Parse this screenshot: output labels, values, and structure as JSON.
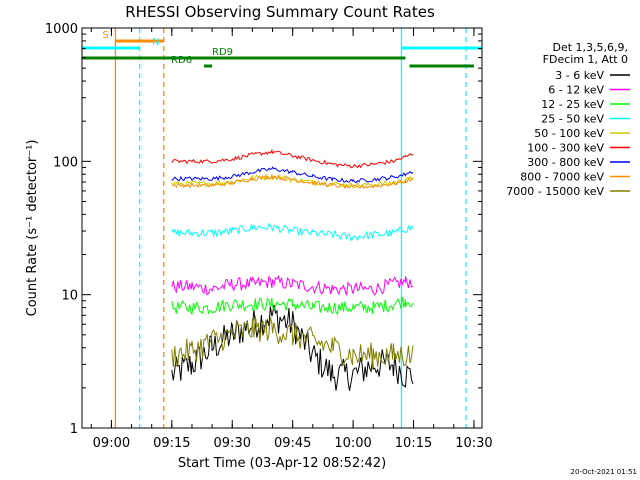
{
  "chart_data": {
    "type": "line",
    "title": "RHESSI Observing Summary Count Rates",
    "xlabel": "Start Time (03-Apr-12 08:52:42)",
    "ylabel": "Count Rate (s⁻¹ detector⁻¹)",
    "y_scale": "log",
    "ylim": [
      1,
      1000
    ],
    "x_range": [
      "08:52:42",
      "10:32:00"
    ],
    "x_ticks": [
      "09:00",
      "09:15",
      "09:30",
      "09:45",
      "10:00",
      "10:15",
      "10:30"
    ],
    "y_ticks": [
      "1",
      "10",
      "100",
      "1000"
    ],
    "timestamp": "20-Oct-2021 01:51",
    "legend_header": [
      "Det 1,3,5,6,9,",
      "FDecim 1, Att 0"
    ],
    "series": [
      {
        "name": "3 - 6 keV",
        "color": "#000000",
        "segments": [
          {
            "times": [
              "09:15",
              "09:20",
              "09:25",
              "09:30",
              "09:35",
              "09:40",
              "09:45",
              "09:50",
              "09:55",
              "10:00",
              "10:05",
              "10:10",
              "10:13",
              "10:15"
            ],
            "values": [
              2.5,
              3.0,
              4.0,
              5.0,
              6.0,
              7.0,
              6.0,
              3.5,
              2.5,
              2.5,
              3.0,
              3.0,
              2.5,
              2.5
            ]
          }
        ]
      },
      {
        "name": "6 - 12 keV",
        "color": "#ff00ff",
        "segments": [
          {
            "times": [
              "09:15",
              "09:20",
              "09:25",
              "09:30",
              "09:35",
              "09:40",
              "09:45",
              "09:50",
              "09:55",
              "10:00",
              "10:05",
              "10:10",
              "10:13",
              "10:15"
            ],
            "values": [
              11.5,
              11.5,
              11.0,
              12.0,
              12.0,
              12.5,
              12.0,
              11.5,
              11.0,
              11.0,
              11.0,
              12.0,
              12.5,
              12.5
            ]
          }
        ]
      },
      {
        "name": "12 - 25 keV",
        "color": "#00ff00",
        "segments": [
          {
            "times": [
              "09:15",
              "09:20",
              "09:25",
              "09:30",
              "09:35",
              "09:40",
              "09:45",
              "09:50",
              "09:55",
              "10:00",
              "10:05",
              "10:10",
              "10:13",
              "10:15"
            ],
            "values": [
              8.0,
              8.0,
              8.0,
              8.5,
              8.5,
              8.5,
              8.5,
              8.0,
              8.0,
              8.0,
              8.0,
              8.5,
              9.0,
              9.0
            ]
          }
        ]
      },
      {
        "name": "25 - 50 keV",
        "color": "#00ffff",
        "segments": [
          {
            "times": [
              "09:15",
              "09:20",
              "09:25",
              "09:30",
              "09:35",
              "09:40",
              "09:45",
              "09:50",
              "09:55",
              "10:00",
              "10:05",
              "10:10",
              "10:13",
              "10:15"
            ],
            "values": [
              29,
              29,
              29,
              30,
              32,
              32,
              30,
              29,
              28,
              27,
              28,
              29,
              31,
              32
            ]
          }
        ]
      },
      {
        "name": "50 - 100 keV",
        "color": "#cccc00",
        "segments": [
          {
            "times": [
              "09:15",
              "09:20",
              "09:25",
              "09:30",
              "09:35",
              "09:40",
              "09:45",
              "09:50",
              "09:55",
              "10:00",
              "10:05",
              "10:10",
              "10:13",
              "10:15"
            ],
            "values": [
              68,
              68,
              68,
              70,
              75,
              77,
              73,
              70,
              68,
              66,
              67,
              69,
              72,
              75
            ]
          }
        ]
      },
      {
        "name": "100 - 300 keV",
        "color": "#ff0000",
        "segments": [
          {
            "times": [
              "09:15",
              "09:20",
              "09:25",
              "09:30",
              "09:35",
              "09:40",
              "09:45",
              "09:50",
              "09:55",
              "10:00",
              "10:05",
              "10:10",
              "10:13",
              "10:15"
            ],
            "values": [
              100,
              100,
              100,
              104,
              112,
              118,
              110,
              102,
              95,
              92,
              95,
              100,
              108,
              115
            ]
          }
        ]
      },
      {
        "name": "300 - 800 keV",
        "color": "#0000ff",
        "segments": [
          {
            "times": [
              "09:15",
              "09:20",
              "09:25",
              "09:30",
              "09:35",
              "09:40",
              "09:45",
              "09:50",
              "09:55",
              "10:00",
              "10:05",
              "10:10",
              "10:13",
              "10:15"
            ],
            "values": [
              74,
              74,
              74,
              77,
              83,
              88,
              83,
              77,
              73,
              71,
              73,
              76,
              80,
              85
            ]
          }
        ]
      },
      {
        "name": "800 - 7000 keV",
        "color": "#ff8c00",
        "segments": [
          {
            "times": [
              "09:15",
              "09:20",
              "09:25",
              "09:30",
              "09:35",
              "09:40",
              "09:45",
              "09:50",
              "09:55",
              "10:00",
              "10:05",
              "10:10",
              "10:13",
              "10:15"
            ],
            "values": [
              66,
              66,
              66,
              69,
              74,
              77,
              73,
              69,
              66,
              64,
              65,
              68,
              71,
              74
            ]
          }
        ]
      },
      {
        "name": "7000 - 15000 keV",
        "color": "#808000",
        "segments": [
          {
            "times": [
              "09:15",
              "09:20",
              "09:25",
              "09:30",
              "09:35",
              "09:40",
              "09:45",
              "09:50",
              "09:55",
              "10:00",
              "10:05",
              "10:10",
              "10:13",
              "10:15"
            ],
            "values": [
              3.5,
              3.8,
              4.5,
              5.0,
              5.5,
              5.5,
              5.0,
              4.5,
              4.0,
              3.5,
              3.5,
              3.5,
              3.5,
              3.5
            ]
          }
        ]
      }
    ],
    "vertical_lines": [
      {
        "time": "09:01",
        "color": "#ff8c00",
        "style": "solid"
      },
      {
        "time": "09:07",
        "color": "#00ffff",
        "style": "dashed"
      },
      {
        "time": "09:13",
        "color": "#ff8c00",
        "style": "dashed"
      },
      {
        "time": "10:12",
        "color": "#00ffff",
        "style": "solid"
      },
      {
        "time": "10:28",
        "color": "#00ffff",
        "style": "dashed"
      }
    ],
    "annotation_bars": [
      {
        "label": "S",
        "color": "#ff8c00",
        "start": "09:01",
        "end": "09:13",
        "y_level": 0
      },
      {
        "label": "N",
        "color": "#00ffff",
        "start": "08:52:42",
        "end": "09:07",
        "y_level": 1
      },
      {
        "label": "",
        "color": "#00ffff",
        "start": "10:12",
        "end": "10:32",
        "y_level": 1
      },
      {
        "label": "RD9",
        "color": "#008000",
        "start": "08:52:42",
        "end": "10:13",
        "y_level": 2
      },
      {
        "label": "RD6",
        "color": "#008000",
        "start": "09:23",
        "end": "09:25",
        "y_level": 3
      },
      {
        "label": "",
        "color": "#008000",
        "start": "10:14",
        "end": "10:30",
        "y_level": 3
      }
    ]
  }
}
